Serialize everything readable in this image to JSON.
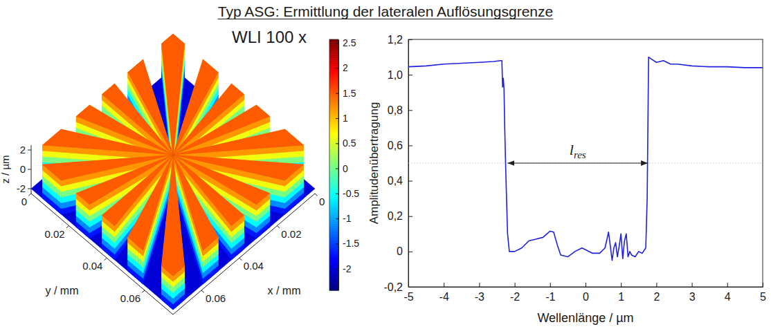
{
  "title": "Typ ASG: Ermittlung der lateralen Auflösungsgrenze",
  "chart_data": [
    {
      "type": "surface3d",
      "annotation": "WLI 100 x",
      "x_label": "x / mm",
      "y_label": "y / mm",
      "z_label": "z / µm",
      "xlim": [
        0,
        0.075
      ],
      "ylim": [
        0,
        0.075
      ],
      "zlim": [
        -2.5,
        2.5
      ],
      "xticks": [
        0,
        0.02,
        0.04,
        0.06
      ],
      "yticks": [
        0,
        0.02,
        0.04,
        0.06
      ],
      "zticks": [
        -2,
        0,
        2
      ],
      "sectors": 36,
      "levels": [
        1.5,
        -2
      ],
      "colorbar": {
        "clim": [
          -2.43,
          2.57
        ],
        "ticks": [
          -2,
          -1.5,
          -1,
          -0.5,
          0,
          0.5,
          1,
          1.5,
          2,
          2.5
        ]
      }
    },
    {
      "type": "line",
      "x_label": "Wellenlänge / µm",
      "y_label": "Amplitudenübertragung",
      "xlim": [
        -5,
        5
      ],
      "ylim": [
        -0.2,
        1.2
      ],
      "xticks": [
        -5,
        -4,
        -3,
        -2,
        -1,
        0,
        1,
        2,
        3,
        4,
        5
      ],
      "yticks": [
        {
          "value": -0.2,
          "label": "-0,2"
        },
        0,
        {
          "value": 0.2,
          "label": "0,2"
        },
        {
          "value": 0.4,
          "label": "0,4"
        },
        {
          "value": 0.6,
          "label": "0,6"
        },
        {
          "value": 0.8,
          "label": "0,8"
        },
        {
          "value": 1,
          "label": "1,0"
        },
        {
          "value": 1.2,
          "label": "1,2"
        }
      ],
      "x": [
        -5,
        -4.5,
        -4,
        -3.5,
        -3,
        -2.6,
        -2.4,
        -2.36,
        -2.34,
        -2.32,
        -2.3,
        -2.28,
        -2.25,
        -2.2,
        -2.15,
        -2.0,
        -1.8,
        -1.6,
        -1.4,
        -1.2,
        -1.0,
        -0.9,
        -0.8,
        -0.7,
        -0.5,
        -0.3,
        -0.1,
        0,
        0.2,
        0.4,
        0.55,
        0.65,
        0.7,
        0.75,
        0.8,
        0.85,
        0.9,
        0.95,
        1.0,
        1.05,
        1.1,
        1.15,
        1.2,
        1.25,
        1.3,
        1.4,
        1.5,
        1.6,
        1.7,
        1.74,
        1.78,
        1.85,
        2.0,
        2.2,
        2.4,
        2.6,
        3,
        3.5,
        4,
        4.5,
        5
      ],
      "series": [
        {
          "color": "#2020e0",
          "values": [
            1.045,
            1.05,
            1.06,
            1.065,
            1.07,
            1.075,
            1.08,
            1.08,
            0.93,
            0.98,
            0.92,
            0.7,
            0.45,
            0.1,
            0,
            0,
            0.02,
            0.06,
            0.07,
            0.08,
            0.115,
            0.11,
            0.04,
            -0.02,
            -0.03,
            0.0,
            0.02,
            0.01,
            -0.01,
            -0.01,
            0.02,
            0.11,
            0.03,
            -0.05,
            0.02,
            0.05,
            -0.03,
            0.03,
            0.1,
            -0.04,
            0.06,
            0.1,
            -0.03,
            0.0,
            -0.02,
            -0.03,
            0.0,
            -0.01,
            0.02,
            0.3,
            1.1,
            1.09,
            1.07,
            1.08,
            1.06,
            1.06,
            1.05,
            1.045,
            1.045,
            1.04,
            1.04
          ]
        }
      ],
      "annotation": {
        "text": "l",
        "subscript": "res",
        "y": 0.5,
        "x_from": -2.2,
        "x_to": 1.76
      }
    }
  ]
}
